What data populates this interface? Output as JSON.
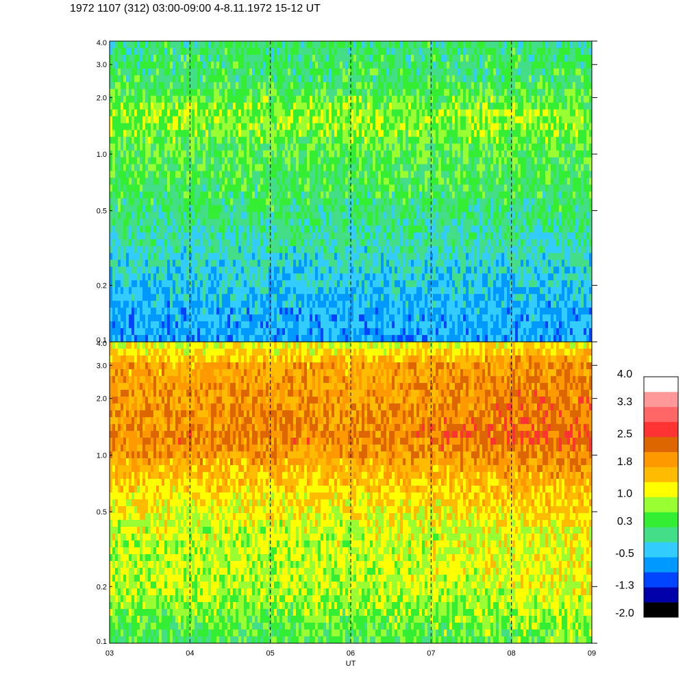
{
  "title": "1972 1107 (312) 03:00-09:00 4-8.11.1972  15-12 UT",
  "chart_data": {
    "type": "heatmap",
    "panels": [
      {
        "name": "",
        "y_scale": "log",
        "ylim": [
          0.1,
          4.0
        ],
        "yticks": [
          {
            "value": 0.1,
            "label": "0.1"
          },
          {
            "value": 0.2,
            "label": "0.2"
          },
          {
            "value": 0.5,
            "label": "0.5"
          },
          {
            "value": 1.0,
            "label": "1.0"
          },
          {
            "value": 2.0,
            "label": "2.0"
          },
          {
            "value": 3.0,
            "label": "3.0"
          },
          {
            "value": 4.0,
            "label": "4.0"
          }
        ],
        "band_fill_level": [
          {
            "y": 4.0,
            "level": 0.2
          },
          {
            "y": 2.5,
            "level": 0.3
          },
          {
            "y": 1.6,
            "level": 0.8
          },
          {
            "y": 1.0,
            "level": 0.5
          },
          {
            "y": 0.6,
            "level": 0.3
          },
          {
            "y": 0.35,
            "level": 0.0
          },
          {
            "y": 0.15,
            "level": -0.5
          },
          {
            "y": 0.1,
            "level": -0.6
          }
        ]
      },
      {
        "name": "",
        "y_scale": "log",
        "ylim": [
          0.1,
          4.0
        ],
        "yticks": [
          {
            "value": 0.1,
            "label": "0.1"
          },
          {
            "value": 0.2,
            "label": "0.2"
          },
          {
            "value": 0.5,
            "label": "0.5"
          },
          {
            "value": 1.0,
            "label": "1.0"
          },
          {
            "value": 2.0,
            "label": "2.0"
          },
          {
            "value": 3.0,
            "label": "3.0"
          },
          {
            "value": 4.0,
            "label": "4.0"
          }
        ],
        "band_fill_level": [
          {
            "y": 4.0,
            "level": 1.0
          },
          {
            "y": 3.0,
            "level": 1.8
          },
          {
            "y": 1.2,
            "level": 2.1
          },
          {
            "y": 0.8,
            "level": 1.6
          },
          {
            "y": 0.4,
            "level": 1.0
          },
          {
            "y": 0.2,
            "level": 0.9
          },
          {
            "y": 0.1,
            "level": 0.4
          }
        ]
      }
    ],
    "x": {
      "label": "UT",
      "xlim": [
        3,
        9
      ],
      "ticks": [
        {
          "value": 3,
          "label": "03"
        },
        {
          "value": 4,
          "label": "04"
        },
        {
          "value": 5,
          "label": "05"
        },
        {
          "value": 6,
          "label": "06"
        },
        {
          "value": 7,
          "label": "07"
        },
        {
          "value": 8,
          "label": "08"
        },
        {
          "value": 9,
          "label": "09"
        }
      ],
      "dashed_gridlines": [
        4,
        5,
        6,
        7,
        8
      ]
    },
    "colorbar": {
      "labels": [
        "4.0",
        "3.3",
        "2.5",
        "1.8",
        "1.0",
        "0.3",
        "-0.5",
        "-1.3",
        "-2.0"
      ],
      "label_values": [
        4.0,
        3.3,
        2.5,
        1.8,
        1.0,
        0.3,
        -0.5,
        -1.3,
        -2.0
      ],
      "levels": [
        {
          "min": -2.0,
          "max": -1.65,
          "color": "#000000"
        },
        {
          "min": -1.65,
          "max": -1.3,
          "color": "#0000aa"
        },
        {
          "min": -1.3,
          "max": -0.9,
          "color": "#0044ff"
        },
        {
          "min": -0.9,
          "max": -0.5,
          "color": "#0099ff"
        },
        {
          "min": -0.5,
          "max": -0.1,
          "color": "#33ccff"
        },
        {
          "min": -0.1,
          "max": 0.3,
          "color": "#44dd88"
        },
        {
          "min": 0.3,
          "max": 0.65,
          "color": "#33ee33"
        },
        {
          "min": 0.65,
          "max": 1.0,
          "color": "#99ff33"
        },
        {
          "min": 1.0,
          "max": 1.4,
          "color": "#ffff00"
        },
        {
          "min": 1.4,
          "max": 1.8,
          "color": "#ffbb00"
        },
        {
          "min": 1.8,
          "max": 2.15,
          "color": "#ff9900"
        },
        {
          "min": 2.15,
          "max": 2.5,
          "color": "#dd6600"
        },
        {
          "min": 2.5,
          "max": 2.9,
          "color": "#ff3333"
        },
        {
          "min": 2.9,
          "max": 3.3,
          "color": "#ff6666"
        },
        {
          "min": 3.3,
          "max": 3.65,
          "color": "#ff9999"
        },
        {
          "min": 3.65,
          "max": 4.0,
          "color": "#ffffff"
        }
      ]
    }
  }
}
